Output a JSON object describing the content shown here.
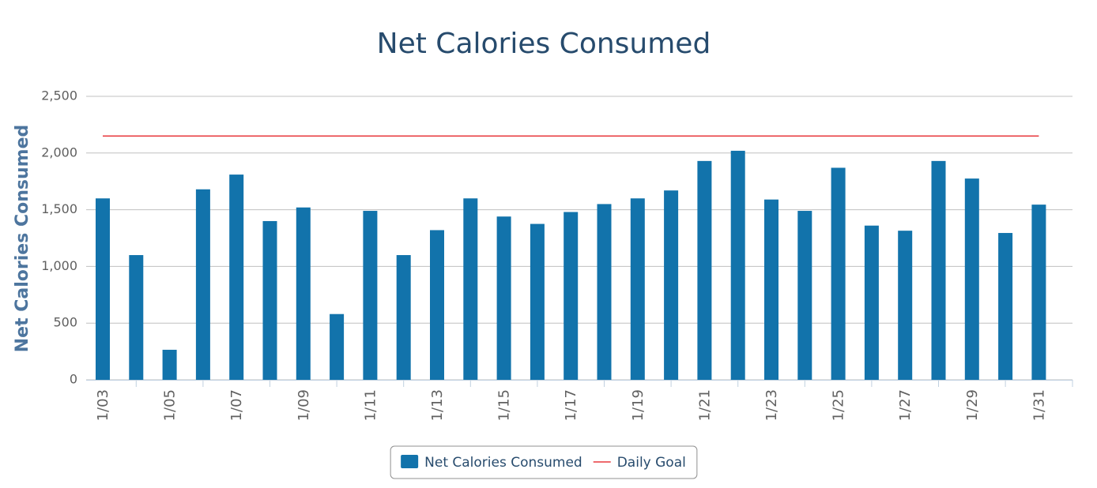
{
  "chart_data": {
    "type": "bar",
    "title": "Net Calories Consumed",
    "y_label": "Net Calories Consumed",
    "categories": [
      "1/03",
      null,
      "1/05",
      null,
      "1/07",
      null,
      "1/09",
      null,
      "1/11",
      null,
      "1/13",
      null,
      "1/15",
      null,
      "1/17",
      null,
      "1/19",
      null,
      "1/21",
      null,
      "1/23",
      null,
      "1/25",
      null,
      "1/27",
      null,
      "1/29",
      null,
      "1/31"
    ],
    "series": [
      {
        "name": "Net Calories Consumed",
        "type": "bar",
        "color": "#1273ab",
        "values": [
          1600,
          1100,
          265,
          1680,
          1810,
          1400,
          1520,
          580,
          1490,
          1100,
          1320,
          1600,
          1440,
          1375,
          1480,
          1550,
          1600,
          1670,
          1930,
          2020,
          1590,
          1490,
          1870,
          1360,
          1315,
          1930,
          1775,
          1295,
          1545
        ]
      },
      {
        "name": "Daily Goal",
        "type": "line",
        "color": "#e8383d",
        "values": [
          2150,
          2150,
          2150,
          2150,
          2150,
          2150,
          2150,
          2150,
          2150,
          2150,
          2150,
          2150,
          2150,
          2150,
          2150,
          2150,
          2150,
          2150,
          2150,
          2150,
          2150,
          2150,
          2150,
          2150,
          2150,
          2150,
          2150,
          2150,
          2150
        ]
      }
    ],
    "ylim": [
      0,
      2500
    ],
    "yticks": [
      0,
      500,
      {
        "value": 1000,
        "label": "1,000"
      },
      {
        "value": 1500,
        "label": "1,500"
      },
      {
        "value": 2000,
        "label": "2,000"
      },
      {
        "value": 2500,
        "label": "2,500"
      }
    ],
    "grid": true,
    "legend": "bottom"
  }
}
